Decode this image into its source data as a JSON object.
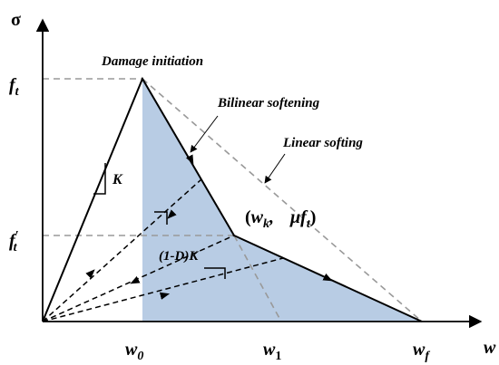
{
  "axes": {
    "y": {
      "main": "σ"
    },
    "x": {
      "main": "w"
    }
  },
  "levels": {
    "ft": {
      "main": "f",
      "sub": "t"
    },
    "ft_prime": {
      "main": "f",
      "prime": "′",
      "sub": "t"
    }
  },
  "x_marks": {
    "w0": {
      "main": "w",
      "sub": "0"
    },
    "w1": {
      "main": "w",
      "sub": "1"
    },
    "wf": {
      "main": "w",
      "sub": "f"
    }
  },
  "annotations": {
    "damage": "Damage initiation",
    "bilinear": "Bilinear softening",
    "linear": "Linear softing",
    "stiffness": "K",
    "damaged_stiffness": "(1-D)K",
    "kink": {
      "open": "(",
      "w": "w",
      "wsub": "k",
      "sep": ",  ",
      "mu": "μf",
      "musub": "t",
      "close": ")"
    }
  }
}
